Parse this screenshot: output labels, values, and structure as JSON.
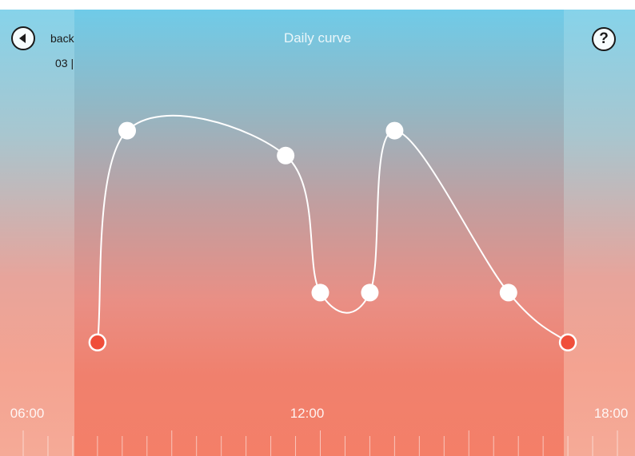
{
  "header": {
    "back_label": "back",
    "counter": "03 |",
    "title": "Daily curve",
    "help_symbol": "?"
  },
  "colors": {
    "curve": "#ffffff",
    "handle": "#ffffff",
    "endpoint": "#f04e3a"
  },
  "chart_data": {
    "type": "line",
    "time_labels": [
      "06:00",
      "12:00",
      "18:00"
    ],
    "x_range_hours": [
      6,
      18
    ],
    "y_range": [
      0,
      100
    ],
    "points": [
      {
        "t": 7.5,
        "v": 10,
        "kind": "endpoint"
      },
      {
        "t": 8.1,
        "v": 95,
        "kind": "handle"
      },
      {
        "t": 11.3,
        "v": 85,
        "kind": "handle"
      },
      {
        "t": 12.0,
        "v": 30,
        "kind": "handle"
      },
      {
        "t": 13.0,
        "v": 30,
        "kind": "handle"
      },
      {
        "t": 13.5,
        "v": 95,
        "kind": "handle"
      },
      {
        "t": 15.8,
        "v": 30,
        "kind": "handle"
      },
      {
        "t": 17.0,
        "v": 10,
        "kind": "endpoint"
      }
    ]
  }
}
